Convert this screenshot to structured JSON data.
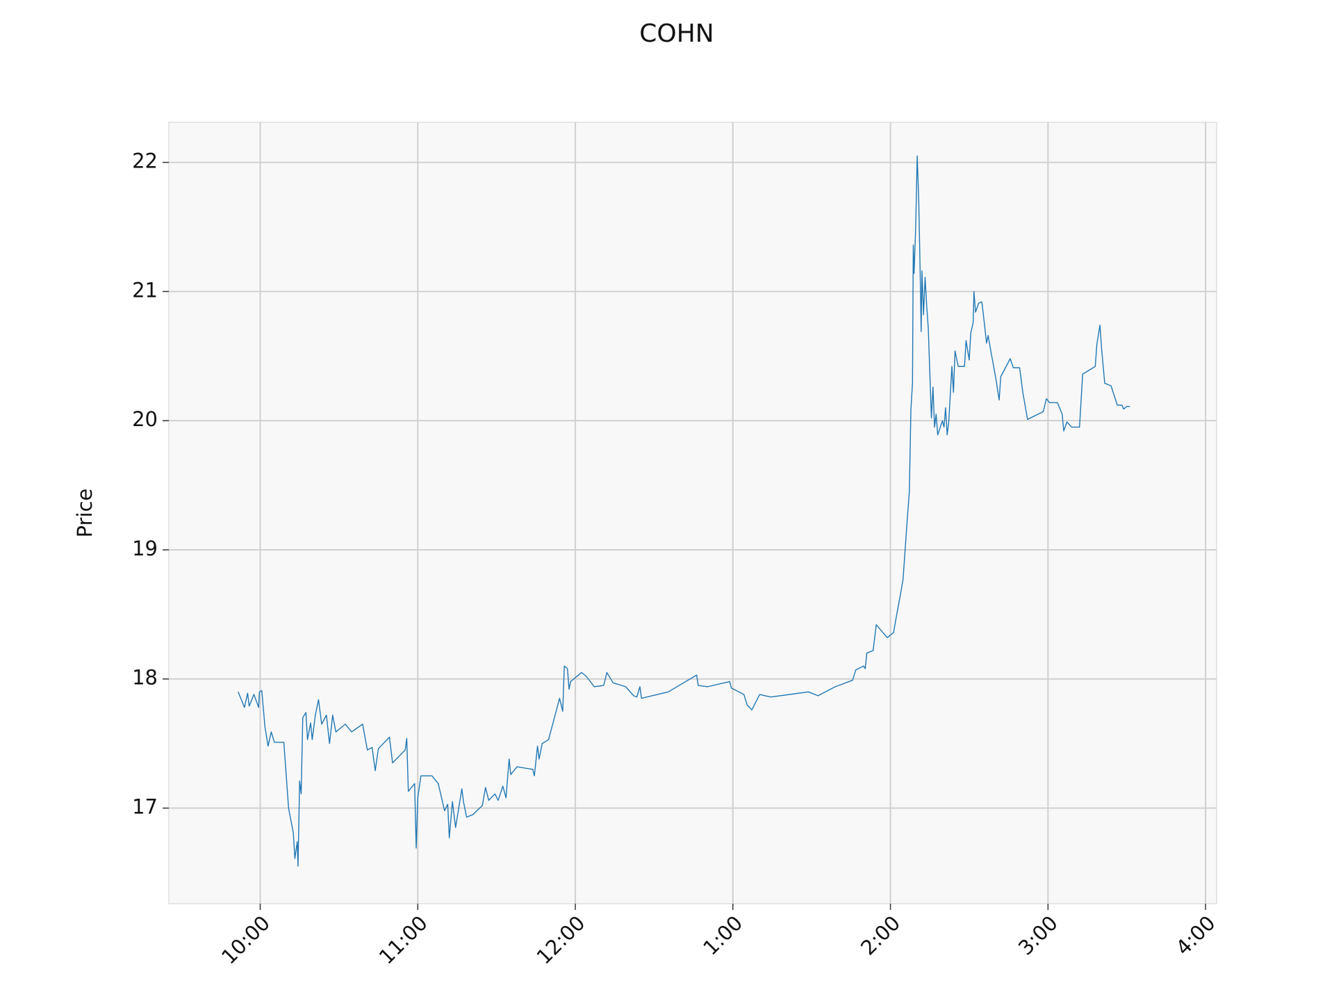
{
  "chart_data": {
    "type": "line",
    "title": "COHN",
    "y_label": "Price",
    "x": [
      9.86,
      9.9,
      9.92,
      9.93,
      9.96,
      9.99,
      9.995,
      10.01,
      10.03,
      10.05,
      10.07,
      10.09,
      10.11,
      10.15,
      10.18,
      10.21,
      10.22,
      10.235,
      10.24,
      10.25,
      10.26,
      10.27,
      10.29,
      10.3,
      10.32,
      10.33,
      10.35,
      10.37,
      10.39,
      10.42,
      10.44,
      10.46,
      10.48,
      10.54,
      10.58,
      10.65,
      10.68,
      10.71,
      10.73,
      10.75,
      10.82,
      10.84,
      10.92,
      10.93,
      10.94,
      10.98,
      10.99,
      11.0,
      11.02,
      11.09,
      11.13,
      11.17,
      11.19,
      11.2,
      11.22,
      11.24,
      11.28,
      11.29,
      11.31,
      11.35,
      11.41,
      11.43,
      11.45,
      11.49,
      11.51,
      11.54,
      11.56,
      11.58,
      11.59,
      11.63,
      11.73,
      11.74,
      11.76,
      11.77,
      11.79,
      11.83,
      11.9,
      11.92,
      11.93,
      11.95,
      11.96,
      11.97,
      12.04,
      12.07,
      12.12,
      12.18,
      12.2,
      12.24,
      12.32,
      12.37,
      12.39,
      12.41,
      12.42,
      12.59,
      12.77,
      12.78,
      12.84,
      12.98,
      12.99,
      13.07,
      13.09,
      13.12,
      13.17,
      13.24,
      13.48,
      13.54,
      13.65,
      13.76,
      13.78,
      13.83,
      13.84,
      13.85,
      13.89,
      13.91,
      13.98,
      14.02,
      14.04,
      14.06,
      14.08,
      14.1,
      14.11,
      14.12,
      14.13,
      14.14,
      14.145,
      14.15,
      14.16,
      14.17,
      14.18,
      14.19,
      14.195,
      14.2,
      14.21,
      14.22,
      14.23,
      14.24,
      14.26,
      14.27,
      14.28,
      14.29,
      14.3,
      14.33,
      14.34,
      14.35,
      14.36,
      14.37,
      14.39,
      14.4,
      14.41,
      14.43,
      14.47,
      14.48,
      14.5,
      14.51,
      14.525,
      14.53,
      14.54,
      14.56,
      14.58,
      14.59,
      14.61,
      14.62,
      14.64,
      14.67,
      14.69,
      14.7,
      14.76,
      14.78,
      14.82,
      14.84,
      14.87,
      14.97,
      14.99,
      15.01,
      15.06,
      15.09,
      15.1,
      15.12,
      15.15,
      15.2,
      15.22,
      15.3,
      15.31,
      15.33,
      15.34,
      15.36,
      15.4,
      15.44,
      15.47,
      15.48,
      15.5,
      15.52
    ],
    "series": [
      {
        "name": "Price",
        "color": "#1f77b4",
        "values": [
          17.9,
          17.78,
          17.89,
          17.79,
          17.88,
          17.78,
          17.9,
          17.91,
          17.63,
          17.48,
          17.59,
          17.51,
          17.51,
          17.51,
          17.0,
          16.81,
          16.61,
          16.74,
          16.55,
          17.21,
          17.11,
          17.7,
          17.74,
          17.53,
          17.66,
          17.53,
          17.72,
          17.84,
          17.65,
          17.72,
          17.5,
          17.72,
          17.59,
          17.65,
          17.59,
          17.65,
          17.45,
          17.47,
          17.29,
          17.46,
          17.55,
          17.35,
          17.45,
          17.54,
          17.13,
          17.19,
          16.69,
          17.08,
          17.25,
          17.25,
          17.19,
          16.98,
          17.03,
          16.77,
          17.05,
          16.85,
          17.15,
          17.05,
          16.93,
          16.95,
          17.02,
          17.16,
          17.06,
          17.11,
          17.06,
          17.17,
          17.08,
          17.38,
          17.26,
          17.32,
          17.3,
          17.25,
          17.48,
          17.38,
          17.5,
          17.53,
          17.85,
          17.75,
          18.1,
          18.08,
          17.92,
          17.98,
          18.05,
          18.02,
          17.94,
          17.95,
          18.05,
          17.97,
          17.94,
          17.87,
          17.86,
          17.94,
          17.85,
          17.9,
          18.03,
          17.95,
          17.94,
          17.98,
          17.93,
          17.88,
          17.8,
          17.76,
          17.88,
          17.86,
          17.9,
          17.87,
          17.94,
          17.99,
          18.07,
          18.1,
          18.08,
          18.2,
          18.22,
          18.42,
          18.32,
          18.36,
          18.5,
          18.63,
          18.77,
          19.12,
          19.29,
          19.45,
          20.09,
          20.29,
          21.36,
          21.14,
          21.49,
          22.05,
          21.69,
          21.06,
          20.69,
          21.16,
          20.82,
          21.11,
          20.89,
          20.72,
          20.02,
          20.26,
          19.95,
          20.05,
          19.89,
          20.0,
          19.95,
          20.1,
          19.89,
          19.99,
          20.42,
          20.22,
          20.54,
          20.42,
          20.42,
          20.62,
          20.47,
          20.68,
          20.76,
          21.0,
          20.84,
          20.91,
          20.92,
          20.82,
          20.6,
          20.66,
          20.52,
          20.32,
          20.16,
          20.34,
          20.48,
          20.41,
          20.41,
          20.22,
          20.01,
          20.07,
          20.17,
          20.14,
          20.14,
          20.05,
          19.92,
          19.99,
          19.95,
          19.95,
          20.36,
          20.42,
          20.59,
          20.74,
          20.56,
          20.29,
          20.27,
          20.12,
          20.12,
          20.09,
          20.11,
          20.11
        ]
      }
    ],
    "xlim": [
      9.42,
      16.07
    ],
    "xticks": [
      {
        "value": 10,
        "label": "10:00"
      },
      {
        "value": 11,
        "label": "11:00"
      },
      {
        "value": 12,
        "label": "12:00"
      },
      {
        "value": 13,
        "label": "1:00"
      },
      {
        "value": 14,
        "label": "2:00"
      },
      {
        "value": 15,
        "label": "3:00"
      },
      {
        "value": 16,
        "label": "4:00"
      }
    ],
    "ylim": [
      16.26,
      22.31
    ],
    "yticks": [
      17,
      18,
      19,
      20,
      21,
      22
    ],
    "grid": true
  }
}
